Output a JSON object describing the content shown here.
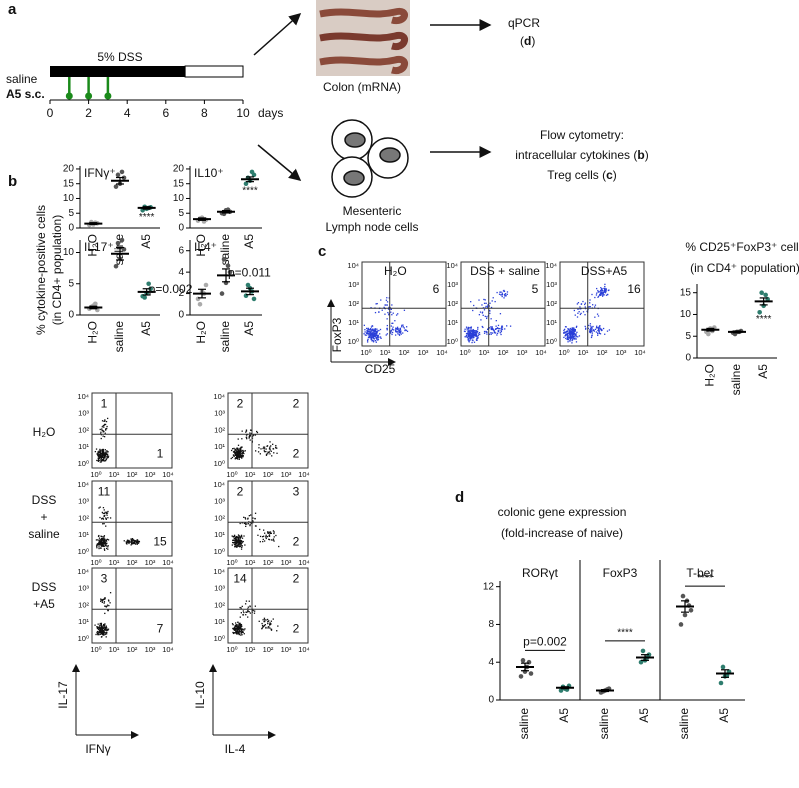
{
  "panel_labels": [
    "a",
    "b",
    "c",
    "d"
  ],
  "timeline": {
    "bar_label": "5% DSS",
    "saline_label": "saline",
    "a5_label": "A5 s.c.",
    "unit": "days",
    "xlim": [
      0,
      10
    ],
    "xticks": [
      0,
      2,
      4,
      6,
      8,
      10
    ],
    "dss_days": [
      0,
      7
    ],
    "injection_days": [
      1,
      2,
      3
    ]
  },
  "workflow": {
    "colon_label": "Colon (mRNA)",
    "qpcr": "qPCR",
    "qpcr_ref": [
      "(",
      "d",
      ")"
    ],
    "cells_label": [
      "Mesenteric",
      "Lymph node cells"
    ],
    "flow_title": "Flow cytometry:",
    "flow_lines": [
      [
        "intracellular cytokines (",
        "b",
        ")"
      ],
      [
        "Treg cells (",
        "c",
        ")"
      ]
    ]
  },
  "panel_b_ylabel": [
    "% cytokine-positive cells",
    "(in CD4+ population)"
  ],
  "chart_data": [
    {
      "type": "strip",
      "title": "IFNγ⁺",
      "categories": [
        "H₂O",
        "saline",
        "A5"
      ],
      "means": [
        1.5,
        16,
        6.8
      ],
      "errors": [
        0.3,
        1.1,
        0.4
      ],
      "points": [
        [
          1,
          1.2,
          1.6,
          2,
          1.8
        ],
        [
          14,
          15,
          17,
          18,
          19
        ],
        [
          6,
          6.5,
          7,
          7.2,
          6.8
        ]
      ],
      "annotations": [
        null,
        null,
        "****"
      ],
      "ylim": [
        0,
        21
      ],
      "yticks": [
        0,
        5,
        10,
        15,
        20
      ]
    },
    {
      "type": "strip",
      "title": "IL10⁺",
      "categories": [
        "H₂O",
        "saline",
        "A5"
      ],
      "means": [
        3,
        5.5,
        16.5
      ],
      "errors": [
        0.4,
        0.4,
        0.8
      ],
      "points": [
        [
          2.5,
          3.5,
          2.8,
          3.2,
          2.2
        ],
        [
          5,
          6,
          5.5,
          4.8,
          6.2
        ],
        [
          15,
          16,
          18,
          17,
          19
        ]
      ],
      "annotations": [
        null,
        null,
        "****"
      ],
      "ylim": [
        0,
        21
      ],
      "yticks": [
        0,
        5,
        10,
        15,
        20
      ]
    },
    {
      "type": "strip",
      "title": "IL17⁺",
      "categories": [
        "H₂O",
        "saline",
        "A5"
      ],
      "means": [
        1.2,
        9.8,
        3.7
      ],
      "errors": [
        0.2,
        1,
        0.5
      ],
      "points": [
        [
          1,
          1.5,
          0.8,
          1.3,
          1.8
        ],
        [
          7.8,
          9,
          10.5,
          11.5,
          12
        ],
        [
          3,
          3.5,
          4.2,
          2.8,
          5
        ]
      ],
      "annotations": [
        null,
        null,
        "p=0.002"
      ],
      "ylim": [
        0,
        12
      ],
      "yticks": [
        0,
        5,
        10
      ]
    },
    {
      "type": "strip",
      "title": "IL4⁺",
      "categories": [
        "H₂O",
        "saline",
        "A5"
      ],
      "means": [
        2,
        3.7,
        2.2
      ],
      "errors": [
        0.4,
        0.6,
        0.3
      ],
      "points": [
        [
          1.5,
          2.2,
          2.8,
          1,
          2
        ],
        [
          2,
          3,
          4,
          5.2,
          4.6
        ],
        [
          1.8,
          2.5,
          1.5,
          2.8,
          2.2
        ]
      ],
      "annotations": [
        null,
        "p=0.011",
        null
      ],
      "ylim": [
        0,
        7
      ],
      "yticks": [
        0,
        2,
        4,
        6
      ]
    },
    {
      "type": "strip",
      "title": "% CD25⁺FoxP3⁺ cells",
      "subtitle": "(in CD4⁺ population)",
      "categories": [
        "H₂O",
        "saline",
        "A5"
      ],
      "means": [
        6.5,
        6,
        13
      ],
      "errors": [
        0.3,
        0.2,
        0.8
      ],
      "points": [
        [
          6,
          6.8,
          7,
          5.5,
          6.2
        ],
        [
          5.8,
          6,
          6.2,
          5.5,
          6
        ],
        [
          10.5,
          12,
          13.5,
          15,
          14.5
        ]
      ],
      "annotations": [
        null,
        null,
        "****"
      ],
      "ylim": [
        0,
        17
      ],
      "yticks": [
        0,
        5,
        10,
        15
      ]
    },
    {
      "type": "grouped_strip",
      "title": "colonic gene expression",
      "subtitle": "(fold-increase of naive)",
      "ylim": [
        0,
        12.6
      ],
      "yticks": [
        0,
        4,
        8,
        12
      ],
      "groups": [
        {
          "name": "RORγt",
          "categories": [
            "saline",
            "A5"
          ],
          "means": [
            3.5,
            1.3
          ],
          "errors": [
            0.4,
            0.1
          ],
          "points": [
            [
              2.5,
              3,
              4,
              4.2,
              3.5,
              2.8
            ],
            [
              1,
              1.2,
              1.5,
              1.4,
              1.1
            ]
          ],
          "annotation": "p=0.002"
        },
        {
          "name": "FoxP3",
          "categories": [
            "saline",
            "A5"
          ],
          "means": [
            1,
            4.5
          ],
          "errors": [
            0.1,
            0.3
          ],
          "points": [
            [
              0.8,
              1,
              1.2,
              0.9,
              1.1
            ],
            [
              4,
              4.2,
              4.8,
              5.2,
              4.5
            ]
          ],
          "annotation": "****"
        },
        {
          "name": "T-bet",
          "categories": [
            "saline",
            "A5"
          ],
          "means": [
            9.9,
            2.8
          ],
          "errors": [
            0.6,
            0.4
          ],
          "points": [
            [
              8,
              9,
              10,
              11,
              10.5,
              9.5
            ],
            [
              1.8,
              2.5,
              3,
              3.5,
              2.6
            ]
          ],
          "annotation": "****"
        }
      ]
    }
  ],
  "treg_flow": {
    "titles": [
      "H₂O",
      "DSS + saline",
      "DSS+A5"
    ],
    "values": [
      6,
      5,
      16
    ],
    "y_label": "FoxP3",
    "x_label": "CD25"
  },
  "flow": {
    "axis_ticks": [
      "10⁰",
      "10¹",
      "10²",
      "10³",
      "10⁴"
    ],
    "row_labels": [
      [
        "H₂O"
      ],
      [
        "DSS",
        "+",
        "saline"
      ],
      [
        "DSS",
        "+A5"
      ]
    ],
    "left": {
      "x_label": "IFNγ",
      "y_label": "IL-17",
      "quadrants": [
        [
          1,
          null,
          1
        ],
        [
          11,
          null,
          15
        ],
        [
          3,
          null,
          7
        ]
      ]
    },
    "right": {
      "x_label": "IL-4",
      "y_label": "IL-10",
      "quadrants": [
        [
          2,
          2,
          2
        ],
        [
          2,
          3,
          2
        ],
        [
          14,
          2,
          2
        ]
      ]
    }
  }
}
